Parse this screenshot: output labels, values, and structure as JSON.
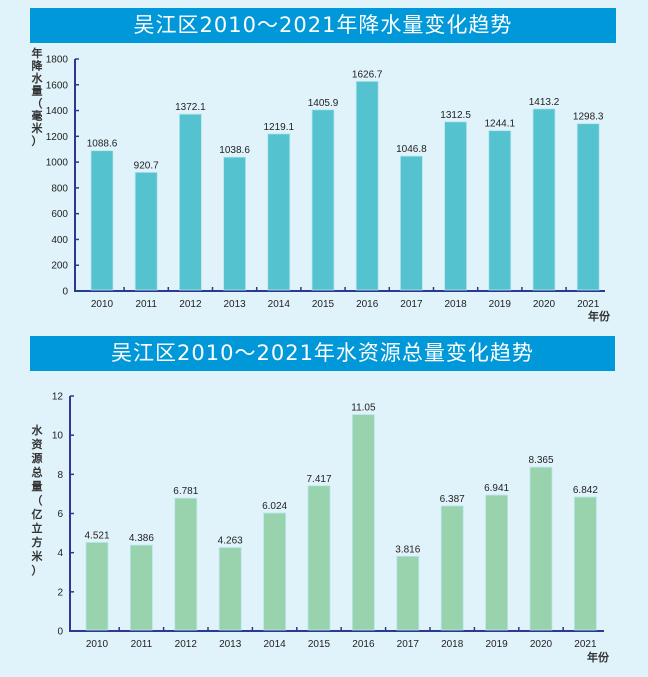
{
  "chart_data": [
    {
      "type": "bar",
      "title": "吴江区2010～2021年降水量变化趋势",
      "xlabel": "年份",
      "ylabel": "年降水量（毫米）",
      "ylim": [
        0,
        1800
      ],
      "yticks": [
        0,
        200,
        400,
        600,
        800,
        1000,
        1200,
        1400,
        1600,
        1800
      ],
      "categories": [
        "2010",
        "2011",
        "2012",
        "2013",
        "2014",
        "2015",
        "2016",
        "2017",
        "2018",
        "2019",
        "2020",
        "2021"
      ],
      "values": [
        1088.6,
        920.7,
        1372.1,
        1038.6,
        1219.1,
        1405.9,
        1626.7,
        1046.8,
        1312.5,
        1244.1,
        1413.2,
        1298.3
      ],
      "value_labels": [
        "1088.6",
        "920.7",
        "1372.1",
        "1038.6",
        "1219.1",
        "1405.9",
        "1626.7",
        "1046.8",
        "1312.5",
        "1244.1",
        "1413.2",
        "1298.3"
      ],
      "bar_color": "#55c3cf",
      "axis_color": "#2b3990",
      "grid": false,
      "legend": "none"
    },
    {
      "type": "bar",
      "title": "吴江区2010～2021年水资源总量变化趋势",
      "xlabel": "年份",
      "ylabel": "水资源总量（亿立方米）",
      "ylim": [
        0,
        12
      ],
      "yticks": [
        0,
        2,
        4,
        6,
        8,
        10,
        12
      ],
      "categories": [
        "2010",
        "2011",
        "2012",
        "2013",
        "2014",
        "2015",
        "2016",
        "2017",
        "2018",
        "2019",
        "2020",
        "2021"
      ],
      "values": [
        4.521,
        4.386,
        6.781,
        4.263,
        6.024,
        7.417,
        11.05,
        3.816,
        6.387,
        6.941,
        8.365,
        6.842
      ],
      "value_labels": [
        "4.521",
        "4.386",
        "6.781",
        "4.263",
        "6.024",
        "7.417",
        "11.05",
        "3.816",
        "6.387",
        "6.941",
        "8.365",
        "6.842"
      ],
      "bar_color": "#99d3ae",
      "axis_color": "#2b3990",
      "grid": false,
      "legend": "none"
    }
  ],
  "ylabel_chars": [
    [
      "年",
      "降",
      "水",
      "量",
      "（",
      "毫",
      "米",
      "）"
    ],
    [
      "水",
      "资",
      "源",
      "总",
      "量",
      "（",
      "亿",
      "立",
      "方",
      "米",
      "）"
    ]
  ],
  "banner_color": "#0098d8",
  "background_color": "#e0f3fb"
}
